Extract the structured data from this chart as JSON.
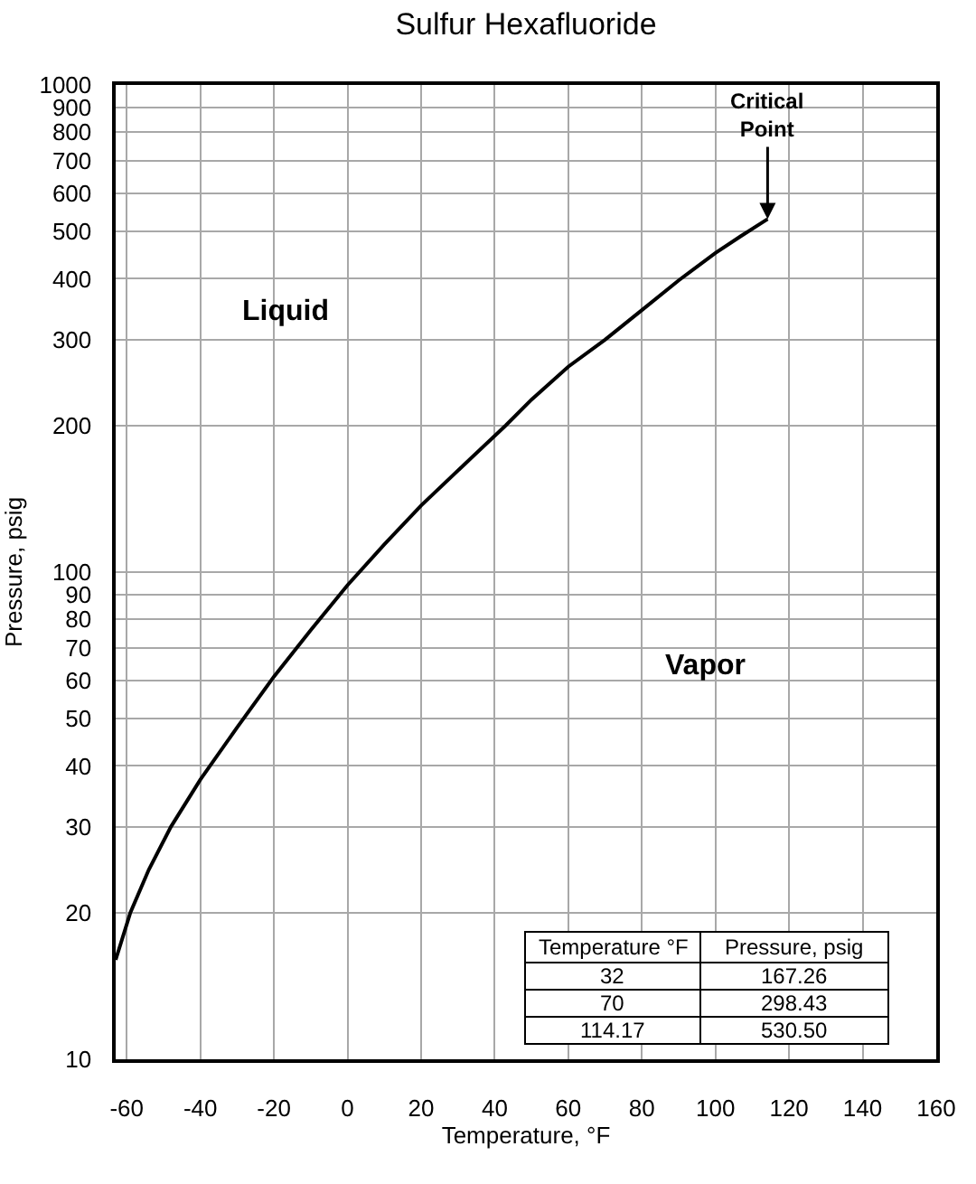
{
  "chart_data": {
    "type": "line",
    "title": "Sulfur Hexafluoride",
    "xlabel": "Temperature, °F",
    "ylabel": "Pressure, psig",
    "x": [
      -63,
      -59,
      -54,
      -48,
      -40,
      -30,
      -20,
      -10,
      0,
      10,
      20,
      32,
      43,
      50,
      60,
      70,
      80,
      90,
      100,
      107,
      114.17
    ],
    "values": [
      16,
      20,
      24.5,
      30,
      37.5,
      48,
      61,
      76,
      94,
      114,
      137,
      167,
      200,
      226,
      264,
      300,
      345,
      397,
      452,
      490,
      530.5
    ],
    "color": "#000000",
    "xlim": [
      -63,
      160
    ],
    "xticks": [
      -60,
      -40,
      -20,
      0,
      20,
      40,
      60,
      80,
      100,
      120,
      140,
      160
    ],
    "ylim": [
      10,
      1000
    ],
    "yticks": [
      10,
      20,
      30,
      40,
      50,
      60,
      70,
      80,
      90,
      100,
      200,
      300,
      400,
      500,
      600,
      700,
      800,
      900,
      1000
    ],
    "log": true,
    "grid": true,
    "annotations": [
      "Liquid",
      "Vapor",
      "Temperature °F",
      "Pressure, psig",
      "32",
      "167.26",
      "70",
      "298.43",
      "114.17",
      "530.50",
      {
        "text": "Critical\nPoint",
        "x": 114.17,
        "y": 530.5
      }
    ]
  }
}
